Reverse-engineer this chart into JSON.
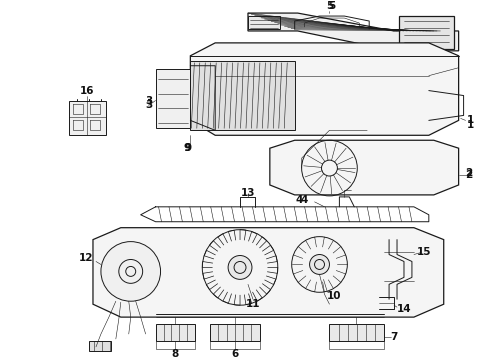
{
  "background_color": "#ffffff",
  "line_color": "#1a1a1a",
  "label_color": "#111111",
  "label_fontsize": 7.5,
  "lw_main": 0.7,
  "lw_thick": 0.9,
  "lw_thin": 0.4
}
